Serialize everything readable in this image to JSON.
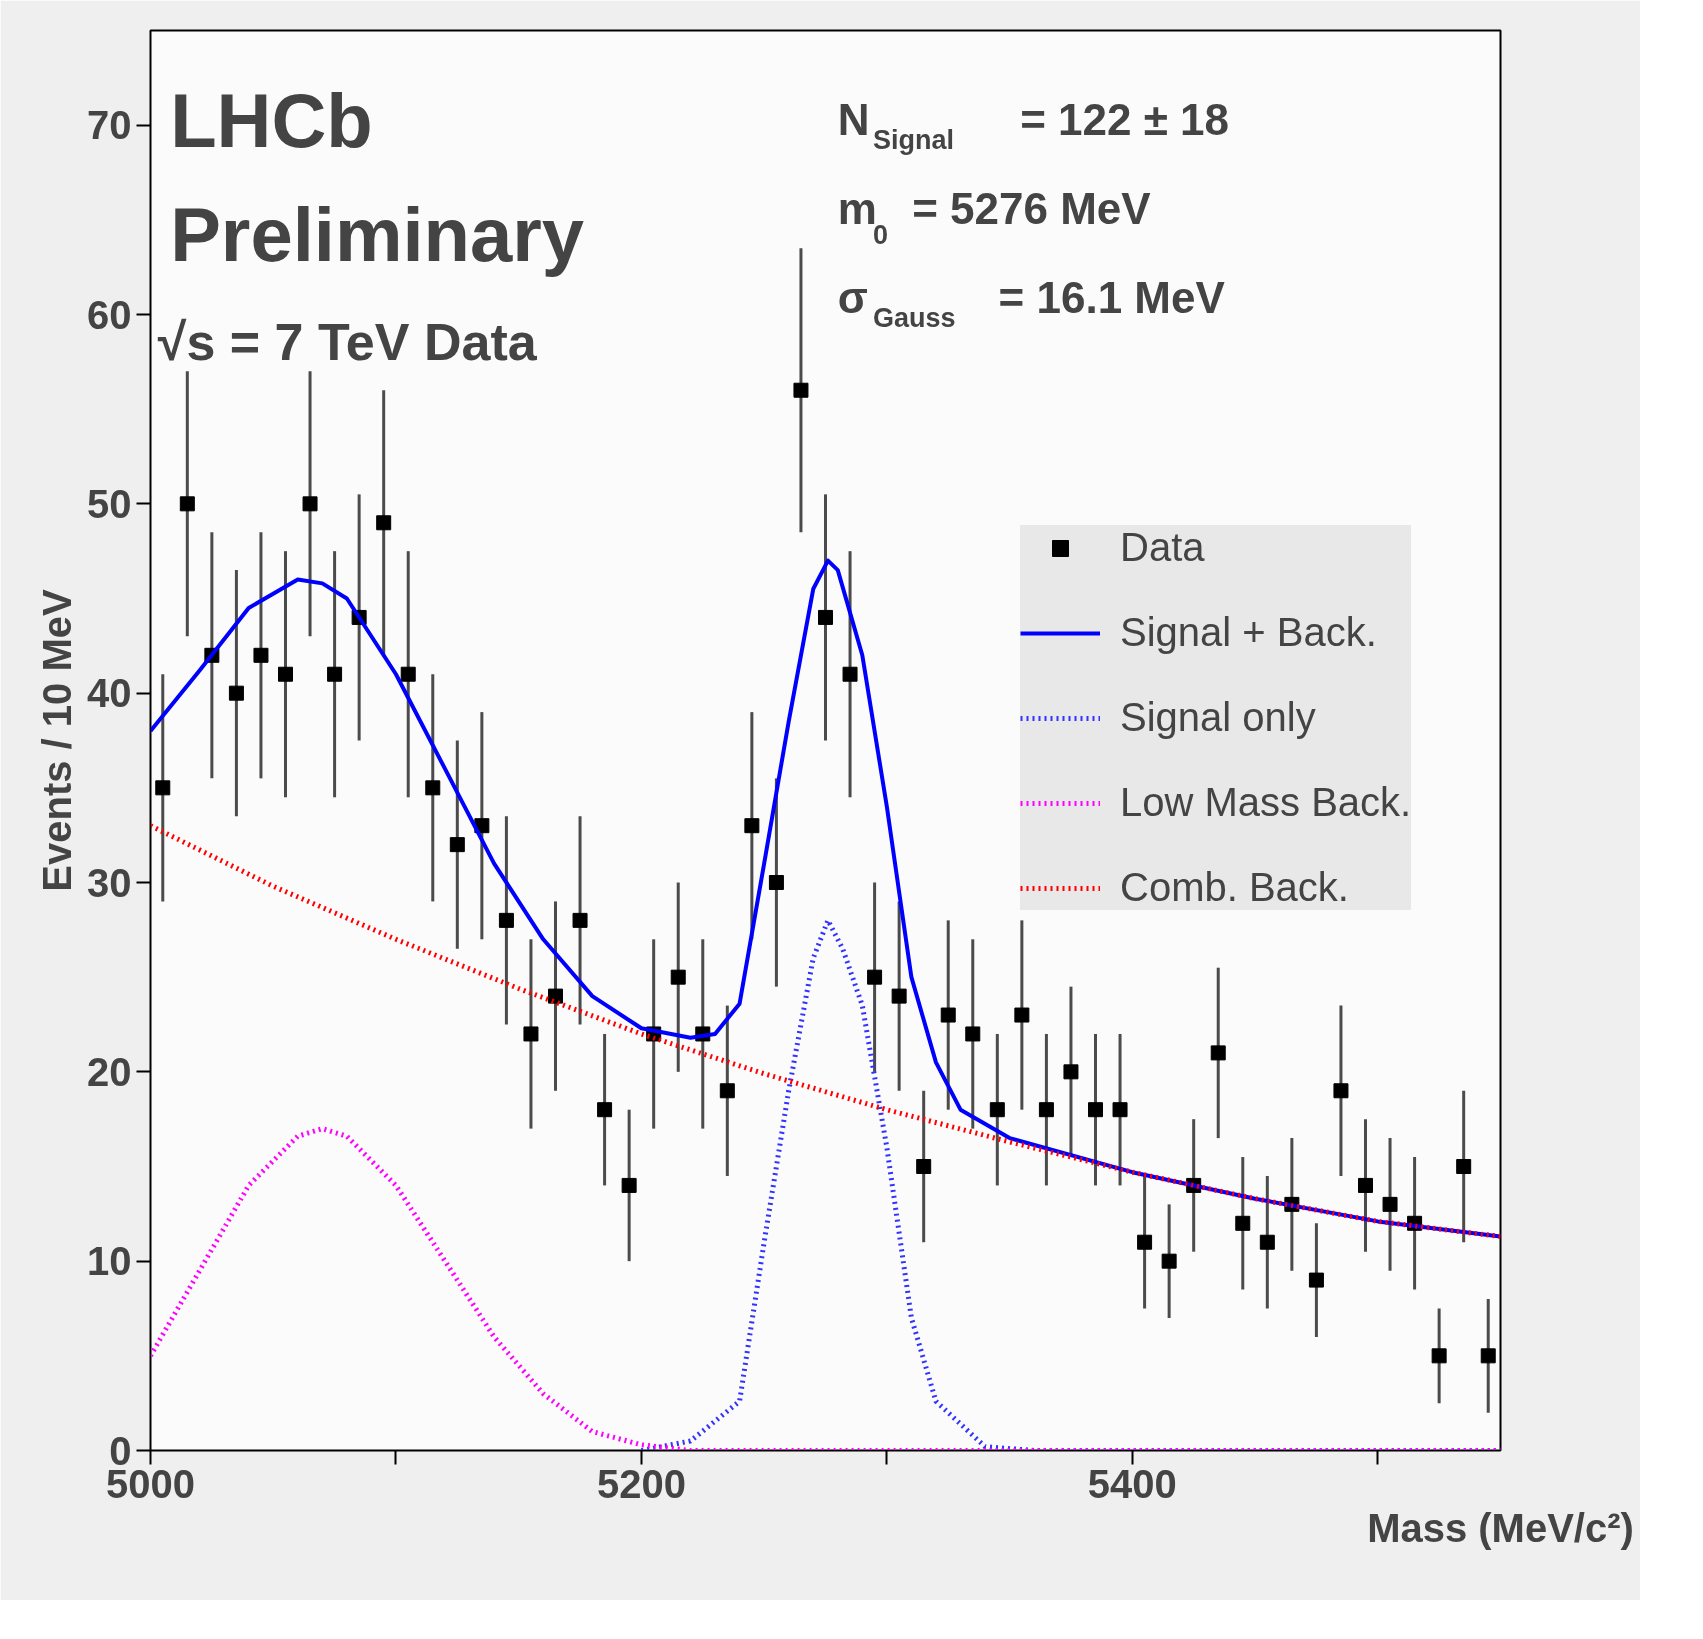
{
  "chart_data": {
    "type": "line",
    "xlabel": "Mass (MeV/c²)",
    "ylabel": "Events / 10 MeV",
    "annotations": [
      "LHCb",
      "Preliminary",
      "√s = 7 TeV Data",
      "N$_{Signal}$ = 122 ± 18",
      "m$_{0}$ = 5276 MeV",
      "σ$_{Gauss}$ = 16.1 MeV"
    ],
    "xlim": [
      5000,
      5550
    ],
    "ylim": [
      0,
      75
    ],
    "xticks": [
      5000,
      {
        "value": 5100,
        "label": null
      },
      5200,
      {
        "value": 5300,
        "label": null
      },
      5400,
      {
        "value": 5500,
        "label": null
      }
    ],
    "yticks": [
      0,
      10,
      20,
      30,
      40,
      50,
      60,
      70
    ],
    "grid": false,
    "legend": "top right",
    "series": [
      {
        "name": "Data",
        "type": "scatter",
        "marker": "square",
        "color": "#000000",
        "x": [
          5005,
          5015,
          5025,
          5035,
          5045,
          5055,
          5065,
          5075,
          5085,
          5095,
          5105,
          5115,
          5125,
          5135,
          5145,
          5155,
          5165,
          5175,
          5185,
          5195,
          5205,
          5215,
          5225,
          5235,
          5245,
          5255,
          5265,
          5275,
          5285,
          5295,
          5305,
          5315,
          5325,
          5335,
          5345,
          5355,
          5365,
          5375,
          5385,
          5395,
          5405,
          5415,
          5425,
          5435,
          5445,
          5455,
          5465,
          5475,
          5485,
          5495,
          5505,
          5515,
          5525,
          5535,
          5545
        ],
        "values": [
          35,
          50,
          42,
          40,
          42,
          41,
          50,
          41,
          44,
          49,
          41,
          35,
          32,
          33,
          28,
          22,
          24,
          28,
          18,
          14,
          22,
          25,
          22,
          19,
          33,
          30,
          56,
          44,
          41,
          25,
          24,
          15,
          23,
          22,
          18,
          23,
          18,
          20,
          18,
          18,
          11,
          10,
          14,
          21,
          12,
          11,
          13,
          9,
          19,
          14,
          13,
          12,
          5,
          15,
          5
        ],
        "errors": [
          6,
          7,
          6.5,
          6.5,
          6.5,
          6.5,
          7,
          6.5,
          6.5,
          7,
          6.5,
          6,
          5.5,
          6,
          5.5,
          5,
          5,
          5.5,
          4,
          4,
          5,
          5,
          5,
          4.5,
          6,
          5.5,
          7.5,
          6.5,
          6.5,
          5,
          5,
          4,
          5,
          5,
          4,
          5,
          4,
          4.5,
          4,
          4,
          3.5,
          3,
          3.5,
          4.5,
          3.5,
          3.5,
          3.5,
          3,
          4.5,
          3.5,
          3.5,
          3.5,
          2.5,
          4,
          3
        ]
      },
      {
        "name": "Signal + Back.",
        "line_style": "solid",
        "color": "#0000ff",
        "x": [
          5000,
          5020,
          5040,
          5060,
          5070,
          5080,
          5100,
          5120,
          5140,
          5160,
          5180,
          5200,
          5220,
          5230,
          5240,
          5250,
          5260,
          5270,
          5276,
          5280,
          5290,
          5300,
          5310,
          5320,
          5330,
          5350,
          5400,
          5450,
          5500,
          5550
        ],
        "values": [
          38,
          41.2,
          44.5,
          46,
          45.8,
          45,
          41,
          36,
          31,
          27,
          24,
          22.3,
          21.8,
          22,
          23.6,
          31,
          38.5,
          45.5,
          47,
          46.5,
          42,
          34,
          25,
          20.5,
          18,
          16.5,
          14.7,
          13.3,
          12.1,
          11.3
        ]
      },
      {
        "name": "Signal only",
        "line_style": "dotted",
        "color": "#3333ff",
        "x": [
          5200,
          5220,
          5240,
          5250,
          5260,
          5270,
          5276,
          5282,
          5290,
          5300,
          5310,
          5320,
          5340,
          5360,
          5550
        ],
        "values": [
          0,
          0.5,
          2.6,
          11,
          19,
          26,
          28,
          26.5,
          23.5,
          16,
          7,
          2.6,
          0.2,
          0,
          0
        ]
      },
      {
        "name": "Low Mass Back.",
        "line_style": "dotted",
        "color": "#ff00ff",
        "x": [
          5000,
          5020,
          5040,
          5060,
          5070,
          5080,
          5100,
          5120,
          5140,
          5160,
          5180,
          5200,
          5220,
          5550
        ],
        "values": [
          5,
          9.5,
          14,
          16.6,
          17,
          16.6,
          14,
          10,
          6,
          3,
          1,
          0.3,
          0,
          0
        ]
      },
      {
        "name": "Comb. Back.",
        "line_style": "dotted",
        "color": "#ff0000",
        "x": [
          5000,
          5050,
          5100,
          5150,
          5200,
          5250,
          5300,
          5350,
          5400,
          5450,
          5500,
          5550
        ],
        "values": [
          33,
          29.8,
          27,
          24.4,
          22,
          19.9,
          18,
          16.3,
          14.7,
          13.3,
          12.1,
          11.3
        ]
      }
    ]
  }
}
